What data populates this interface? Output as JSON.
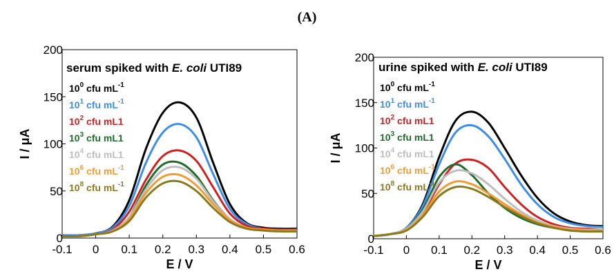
{
  "figure_label": "(A)",
  "chart_data": [
    {
      "type": "line",
      "title": "serum spiked with E. coli UTI89",
      "title_parts": [
        "serum spiked with ",
        "E. coli",
        " UTI89"
      ],
      "xlabel": "E / V",
      "ylabel": "I / μA",
      "xlim": [
        -0.1,
        0.6
      ],
      "ylim": [
        0,
        200
      ],
      "x_ticks": [
        "-0.1",
        "0",
        "0.1",
        "0.2",
        "0.3",
        "0.4",
        "0.5",
        "0.6"
      ],
      "y_ticks": [
        "0",
        "50",
        "100",
        "150",
        "200"
      ],
      "legend_position": "left",
      "series": [
        {
          "name": "10⁰ cfu mL⁻¹",
          "base": "10",
          "exp": "0",
          "unit": "cfu mL",
          "unit_sup": "-1",
          "color": "#000000",
          "x": [
            -0.1,
            -0.05,
            0.0,
            0.05,
            0.1,
            0.15,
            0.2,
            0.25,
            0.3,
            0.35,
            0.4,
            0.45,
            0.5,
            0.55,
            0.6
          ],
          "y": [
            3,
            3,
            5,
            12,
            40,
            95,
            133,
            144,
            128,
            80,
            36,
            16,
            11,
            10,
            10
          ]
        },
        {
          "name": "10¹ cfu mL⁻¹",
          "base": "10",
          "exp": "1",
          "unit": "cfu mL",
          "unit_sup": "-1",
          "color": "#3d8de8",
          "x": [
            -0.1,
            -0.05,
            0.0,
            0.05,
            0.1,
            0.15,
            0.2,
            0.25,
            0.3,
            0.35,
            0.4,
            0.45,
            0.5,
            0.55,
            0.6
          ],
          "y": [
            3,
            3,
            5,
            11,
            34,
            80,
            112,
            121,
            107,
            68,
            31,
            15,
            10,
            9,
            9
          ]
        },
        {
          "name": "10² cfu mL1",
          "base": "10",
          "exp": "2",
          "unit": "cfu mL1",
          "unit_sup": "",
          "color": "#d21f1f",
          "x": [
            -0.1,
            -0.05,
            0.0,
            0.05,
            0.1,
            0.15,
            0.2,
            0.25,
            0.3,
            0.35,
            0.4,
            0.45,
            0.5,
            0.55,
            0.6
          ],
          "y": [
            2,
            2,
            4,
            9,
            28,
            62,
            87,
            93,
            82,
            54,
            26,
            13,
            10,
            9,
            9
          ]
        },
        {
          "name": "10³ cfu mL1",
          "base": "10",
          "exp": "3",
          "unit": "cfu mL1",
          "unit_sup": "",
          "color": "#1f6b2a",
          "x": [
            -0.1,
            -0.05,
            0.0,
            0.05,
            0.1,
            0.15,
            0.2,
            0.25,
            0.3,
            0.35,
            0.4,
            0.45,
            0.5,
            0.55,
            0.6
          ],
          "y": [
            2,
            2,
            4,
            8,
            22,
            56,
            78,
            80,
            66,
            40,
            20,
            11,
            9,
            8,
            8
          ]
        },
        {
          "name": "10⁴ cfu mL1",
          "base": "10",
          "exp": "4",
          "unit": "cfu mL1",
          "unit_sup": "",
          "color": "#bdbdbd",
          "x": [
            -0.1,
            -0.05,
            0.0,
            0.05,
            0.1,
            0.15,
            0.2,
            0.25,
            0.3,
            0.35,
            0.4,
            0.45,
            0.5,
            0.55,
            0.6
          ],
          "y": [
            2,
            2,
            4,
            8,
            22,
            52,
            72,
            75,
            63,
            39,
            20,
            11,
            9,
            8,
            8
          ]
        },
        {
          "name": "10⁶ cfu mL⁻¹",
          "base": "10",
          "exp": "6",
          "unit": "cfu mL",
          "unit_sup": "-1",
          "color": "#f59a33",
          "x": [
            -0.1,
            -0.05,
            0.0,
            0.05,
            0.1,
            0.15,
            0.2,
            0.25,
            0.3,
            0.35,
            0.4,
            0.45,
            0.5,
            0.55,
            0.6
          ],
          "y": [
            2,
            2,
            4,
            7,
            20,
            48,
            65,
            67,
            56,
            36,
            19,
            11,
            9,
            8,
            8
          ]
        },
        {
          "name": "10⁸ cfu mL⁻¹",
          "base": "10",
          "exp": "8",
          "unit": "cfu mL",
          "unit_sup": "-1",
          "color": "#8a7a1e",
          "x": [
            -0.1,
            -0.05,
            0.0,
            0.05,
            0.1,
            0.15,
            0.2,
            0.25,
            0.3,
            0.35,
            0.4,
            0.45,
            0.5,
            0.55,
            0.6
          ],
          "y": [
            2,
            2,
            4,
            7,
            18,
            43,
            58,
            60,
            50,
            32,
            17,
            10,
            8,
            7,
            7
          ]
        }
      ]
    },
    {
      "type": "line",
      "title": "urine spiked with E. coli UTI89",
      "title_parts": [
        "urine spiked with ",
        "E. coli",
        " UTI89"
      ],
      "xlabel": "E / V",
      "ylabel": "I / μA",
      "xlim": [
        -0.1,
        0.6
      ],
      "ylim": [
        0,
        200
      ],
      "x_ticks": [
        "-0.1",
        "0",
        "0.1",
        "0.2",
        "0.3",
        "0.4",
        "0.5",
        "0.6"
      ],
      "y_ticks": [
        "0",
        "50",
        "100",
        "150",
        "200"
      ],
      "legend_position": "left",
      "series": [
        {
          "name": "10⁰ cfu mL⁻¹",
          "base": "10",
          "exp": "0",
          "unit": "cfu mL",
          "unit_sup": "-1",
          "color": "#000000",
          "x": [
            -0.1,
            -0.05,
            0.0,
            0.05,
            0.1,
            0.15,
            0.2,
            0.25,
            0.3,
            0.35,
            0.4,
            0.45,
            0.5,
            0.55,
            0.6
          ],
          "y": [
            3,
            5,
            12,
            38,
            90,
            130,
            140,
            128,
            100,
            70,
            45,
            28,
            19,
            15,
            14
          ]
        },
        {
          "name": "10¹ cfu mL⁻¹",
          "base": "10",
          "exp": "1",
          "unit": "cfu mL",
          "unit_sup": "-1",
          "color": "#3d8de8",
          "x": [
            -0.1,
            -0.05,
            0.0,
            0.05,
            0.1,
            0.15,
            0.2,
            0.25,
            0.3,
            0.35,
            0.4,
            0.45,
            0.5,
            0.55,
            0.6
          ],
          "y": [
            3,
            5,
            12,
            36,
            82,
            117,
            125,
            113,
            88,
            60,
            38,
            24,
            17,
            14,
            13
          ]
        },
        {
          "name": "10² cfu mL1",
          "base": "10",
          "exp": "2",
          "unit": "cfu mL1",
          "unit_sup": "",
          "color": "#d21f1f",
          "x": [
            -0.1,
            -0.05,
            0.0,
            0.05,
            0.1,
            0.15,
            0.2,
            0.25,
            0.3,
            0.35,
            0.4,
            0.45,
            0.5,
            0.55,
            0.6
          ],
          "y": [
            3,
            5,
            10,
            28,
            60,
            83,
            87,
            78,
            57,
            38,
            24,
            16,
            12,
            11,
            10
          ]
        },
        {
          "name": "10³ cfu mL1",
          "base": "10",
          "exp": "3",
          "unit": "cfu mL1",
          "unit_sup": "",
          "color": "#1f6b2a",
          "x": [
            -0.1,
            -0.05,
            0.0,
            0.05,
            0.1,
            0.15,
            0.2,
            0.25,
            0.3,
            0.35,
            0.4,
            0.45,
            0.5,
            0.55,
            0.6
          ],
          "y": [
            3,
            5,
            11,
            32,
            68,
            82,
            70,
            50,
            34,
            23,
            16,
            12,
            10,
            9,
            9
          ]
        },
        {
          "name": "10⁴ cfu mL1",
          "base": "10",
          "exp": "4",
          "unit": "cfu mL1",
          "unit_sup": "",
          "color": "#bdbdbd",
          "x": [
            -0.1,
            -0.05,
            0.0,
            0.05,
            0.1,
            0.15,
            0.2,
            0.25,
            0.3,
            0.35,
            0.4,
            0.45,
            0.5,
            0.55,
            0.6
          ],
          "y": [
            3,
            5,
            11,
            30,
            62,
            75,
            72,
            60,
            44,
            30,
            20,
            14,
            11,
            10,
            10
          ]
        },
        {
          "name": "10⁶ cfu mL⁻¹",
          "base": "10",
          "exp": "6",
          "unit": "cfu mL",
          "unit_sup": "-1",
          "color": "#f59a33",
          "x": [
            -0.1,
            -0.05,
            0.0,
            0.05,
            0.1,
            0.15,
            0.2,
            0.25,
            0.3,
            0.35,
            0.4,
            0.45,
            0.5,
            0.55,
            0.6
          ],
          "y": [
            3,
            5,
            10,
            26,
            52,
            63,
            60,
            50,
            38,
            27,
            18,
            13,
            10,
            9,
            9
          ]
        },
        {
          "name": "10⁸ cfu mL⁻¹",
          "base": "10",
          "exp": "8",
          "unit": "cfu mL",
          "unit_sup": "-1",
          "color": "#8a7a1e",
          "x": [
            -0.1,
            -0.05,
            0.0,
            0.05,
            0.1,
            0.15,
            0.2,
            0.25,
            0.3,
            0.35,
            0.4,
            0.45,
            0.5,
            0.55,
            0.6
          ],
          "y": [
            3,
            5,
            9,
            24,
            47,
            57,
            55,
            46,
            35,
            25,
            17,
            12,
            9,
            8,
            8
          ]
        }
      ]
    }
  ]
}
